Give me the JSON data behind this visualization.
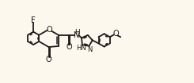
{
  "bg_color": "#fdf8ee",
  "line_color": "#1a1a1a",
  "line_width": 1.3,
  "font_size": 7.5,
  "xlim": [
    0,
    10.0
  ],
  "ylim": [
    -0.5,
    1.6
  ],
  "figsize": [
    2.45,
    1.06
  ],
  "dpi": 100
}
